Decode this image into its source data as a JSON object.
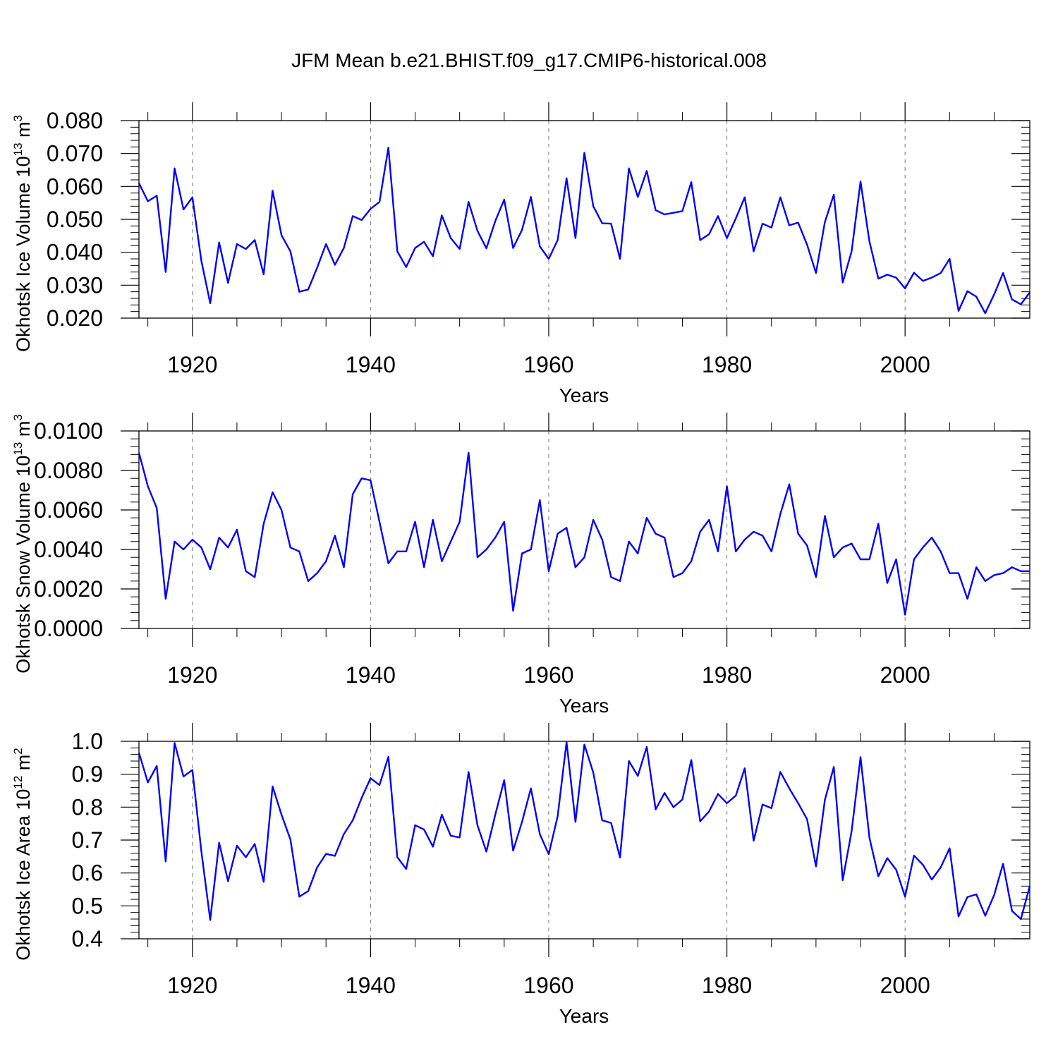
{
  "figure": {
    "title": "JFM Mean b.e21.BHIST.f09_g17.CMIP6-historical.008"
  },
  "chart_data": [
    {
      "type": "line",
      "ylabel": "Okhotsk Ice Volume 10",
      "ylabel_exp": "13",
      "ylabel_unit": " m",
      "ylabel_unit_exp": "3",
      "xlabel": "Years",
      "xlim": [
        1914,
        2014
      ],
      "ylim": [
        0.02,
        0.08
      ],
      "yticks": [
        0.02,
        0.03,
        0.04,
        0.05,
        0.06,
        0.07,
        0.08
      ],
      "ytick_labels": [
        "0.020",
        "0.030",
        "0.040",
        "0.050",
        "0.060",
        "0.070",
        "0.080"
      ],
      "xticks": [
        1920,
        1940,
        1960,
        1980,
        2000
      ],
      "xtick_labels": [
        "1920",
        "1940",
        "1960",
        "1980",
        "2000"
      ],
      "grid": "dashed vertical at major x ticks",
      "series": [
        {
          "color": "#0000ff",
          "x_start": 1914,
          "values": [
            0.061,
            0.0555,
            0.0572,
            0.034,
            0.0655,
            0.053,
            0.0567,
            0.0375,
            0.0245,
            0.043,
            0.0307,
            0.0425,
            0.041,
            0.0437,
            0.0333,
            0.0587,
            0.0452,
            0.0403,
            0.028,
            0.0287,
            0.0353,
            0.0425,
            0.0362,
            0.0413,
            0.051,
            0.0498,
            0.0532,
            0.0553,
            0.0718,
            0.0403,
            0.0355,
            0.0413,
            0.0432,
            0.0388,
            0.0512,
            0.0443,
            0.041,
            0.0553,
            0.0465,
            0.0412,
            0.0495,
            0.056,
            0.0413,
            0.0468,
            0.0568,
            0.0418,
            0.038,
            0.0437,
            0.0625,
            0.0443,
            0.0702,
            0.054,
            0.0488,
            0.0487,
            0.038,
            0.0655,
            0.0568,
            0.0647,
            0.0528,
            0.0515,
            0.052,
            0.0525,
            0.0613,
            0.0437,
            0.0455,
            0.051,
            0.0443,
            0.0503,
            0.0567,
            0.0403,
            0.0487,
            0.0475,
            0.0567,
            0.0482,
            0.049,
            0.0423,
            0.0337,
            0.0492,
            0.0575,
            0.0308,
            0.0403,
            0.0615,
            0.0433,
            0.032,
            0.0332,
            0.0323,
            0.029,
            0.0338,
            0.0313,
            0.0323,
            0.0337,
            0.038,
            0.0222,
            0.0282,
            0.0265,
            0.0215,
            0.0272,
            0.0337,
            0.0257,
            0.0242,
            0.0278
          ]
        }
      ]
    },
    {
      "type": "line",
      "ylabel": "Okhotsk Snow Volume 10",
      "ylabel_exp": "13",
      "ylabel_unit": " m",
      "ylabel_unit_exp": "3",
      "xlabel": "Years",
      "xlim": [
        1914,
        2014
      ],
      "ylim": [
        0.0,
        0.01
      ],
      "yticks": [
        0.0,
        0.002,
        0.004,
        0.006,
        0.008,
        0.01
      ],
      "ytick_labels": [
        "0.0000",
        "0.0020",
        "0.0040",
        "0.0060",
        "0.0080",
        "0.0100"
      ],
      "xticks": [
        1920,
        1940,
        1960,
        1980,
        2000
      ],
      "xtick_labels": [
        "1920",
        "1940",
        "1960",
        "1980",
        "2000"
      ],
      "grid": "dashed vertical at major x ticks",
      "series": [
        {
          "color": "#0000ff",
          "x_start": 1914,
          "values": [
            0.0089,
            0.0072,
            0.0061,
            0.0015,
            0.0044,
            0.004,
            0.0045,
            0.0041,
            0.003,
            0.0046,
            0.0041,
            0.005,
            0.0029,
            0.0026,
            0.0053,
            0.0069,
            0.006,
            0.0041,
            0.0039,
            0.0024,
            0.0028,
            0.0034,
            0.0047,
            0.0031,
            0.0068,
            0.0076,
            0.0075,
            0.0054,
            0.0033,
            0.0039,
            0.0039,
            0.0054,
            0.0031,
            0.0055,
            0.0034,
            0.0044,
            0.0054,
            0.0089,
            0.0036,
            0.004,
            0.0046,
            0.0054,
            0.0009,
            0.0038,
            0.004,
            0.0065,
            0.0029,
            0.0048,
            0.0051,
            0.0031,
            0.0036,
            0.0055,
            0.0045,
            0.0026,
            0.0024,
            0.0044,
            0.0038,
            0.0056,
            0.0048,
            0.0046,
            0.0026,
            0.0028,
            0.0034,
            0.0049,
            0.0055,
            0.0039,
            0.0072,
            0.0039,
            0.0045,
            0.0049,
            0.0047,
            0.0039,
            0.0058,
            0.0073,
            0.0048,
            0.0042,
            0.0026,
            0.0057,
            0.0036,
            0.0041,
            0.0043,
            0.0035,
            0.0035,
            0.0053,
            0.0023,
            0.0035,
            0.0007,
            0.0035,
            0.0041,
            0.0046,
            0.0039,
            0.0028,
            0.0028,
            0.0015,
            0.0031,
            0.0024,
            0.0027,
            0.0028,
            0.0031,
            0.0029,
            0.0029
          ]
        }
      ]
    },
    {
      "type": "line",
      "ylabel": "Okhotsk Ice Area 10",
      "ylabel_exp": "12",
      "ylabel_unit": " m",
      "ylabel_unit_exp": "2",
      "xlabel": "Years",
      "xlim": [
        1914,
        2014
      ],
      "ylim": [
        0.4,
        1.0
      ],
      "yticks": [
        0.4,
        0.5,
        0.6,
        0.7,
        0.8,
        0.9,
        1.0
      ],
      "ytick_labels": [
        "0.4",
        "0.5",
        "0.6",
        "0.7",
        "0.8",
        "0.9",
        "1.0"
      ],
      "xticks": [
        1920,
        1940,
        1960,
        1980,
        2000
      ],
      "xtick_labels": [
        "1920",
        "1940",
        "1960",
        "1980",
        "2000"
      ],
      "grid": "dashed vertical at major x ticks",
      "series": [
        {
          "color": "#0000ff",
          "x_start": 1914,
          "values": [
            0.965,
            0.875,
            0.925,
            0.635,
            0.995,
            0.893,
            0.913,
            0.667,
            0.457,
            0.692,
            0.575,
            0.683,
            0.648,
            0.688,
            0.573,
            0.863,
            0.777,
            0.702,
            0.528,
            0.545,
            0.617,
            0.658,
            0.652,
            0.718,
            0.76,
            0.828,
            0.888,
            0.867,
            0.953,
            0.648,
            0.612,
            0.745,
            0.732,
            0.68,
            0.777,
            0.713,
            0.708,
            0.907,
            0.745,
            0.665,
            0.777,
            0.882,
            0.668,
            0.755,
            0.857,
            0.718,
            0.657,
            0.772,
            0.998,
            0.755,
            0.99,
            0.905,
            0.76,
            0.752,
            0.647,
            0.94,
            0.895,
            0.983,
            0.793,
            0.843,
            0.8,
            0.823,
            0.943,
            0.757,
            0.787,
            0.84,
            0.812,
            0.835,
            0.918,
            0.698,
            0.808,
            0.797,
            0.907,
            0.857,
            0.812,
            0.763,
            0.62,
            0.822,
            0.922,
            0.578,
            0.727,
            0.952,
            0.707,
            0.59,
            0.645,
            0.61,
            0.528,
            0.653,
            0.625,
            0.58,
            0.617,
            0.675,
            0.468,
            0.527,
            0.535,
            0.47,
            0.533,
            0.628,
            0.485,
            0.46,
            0.56
          ]
        }
      ]
    }
  ]
}
